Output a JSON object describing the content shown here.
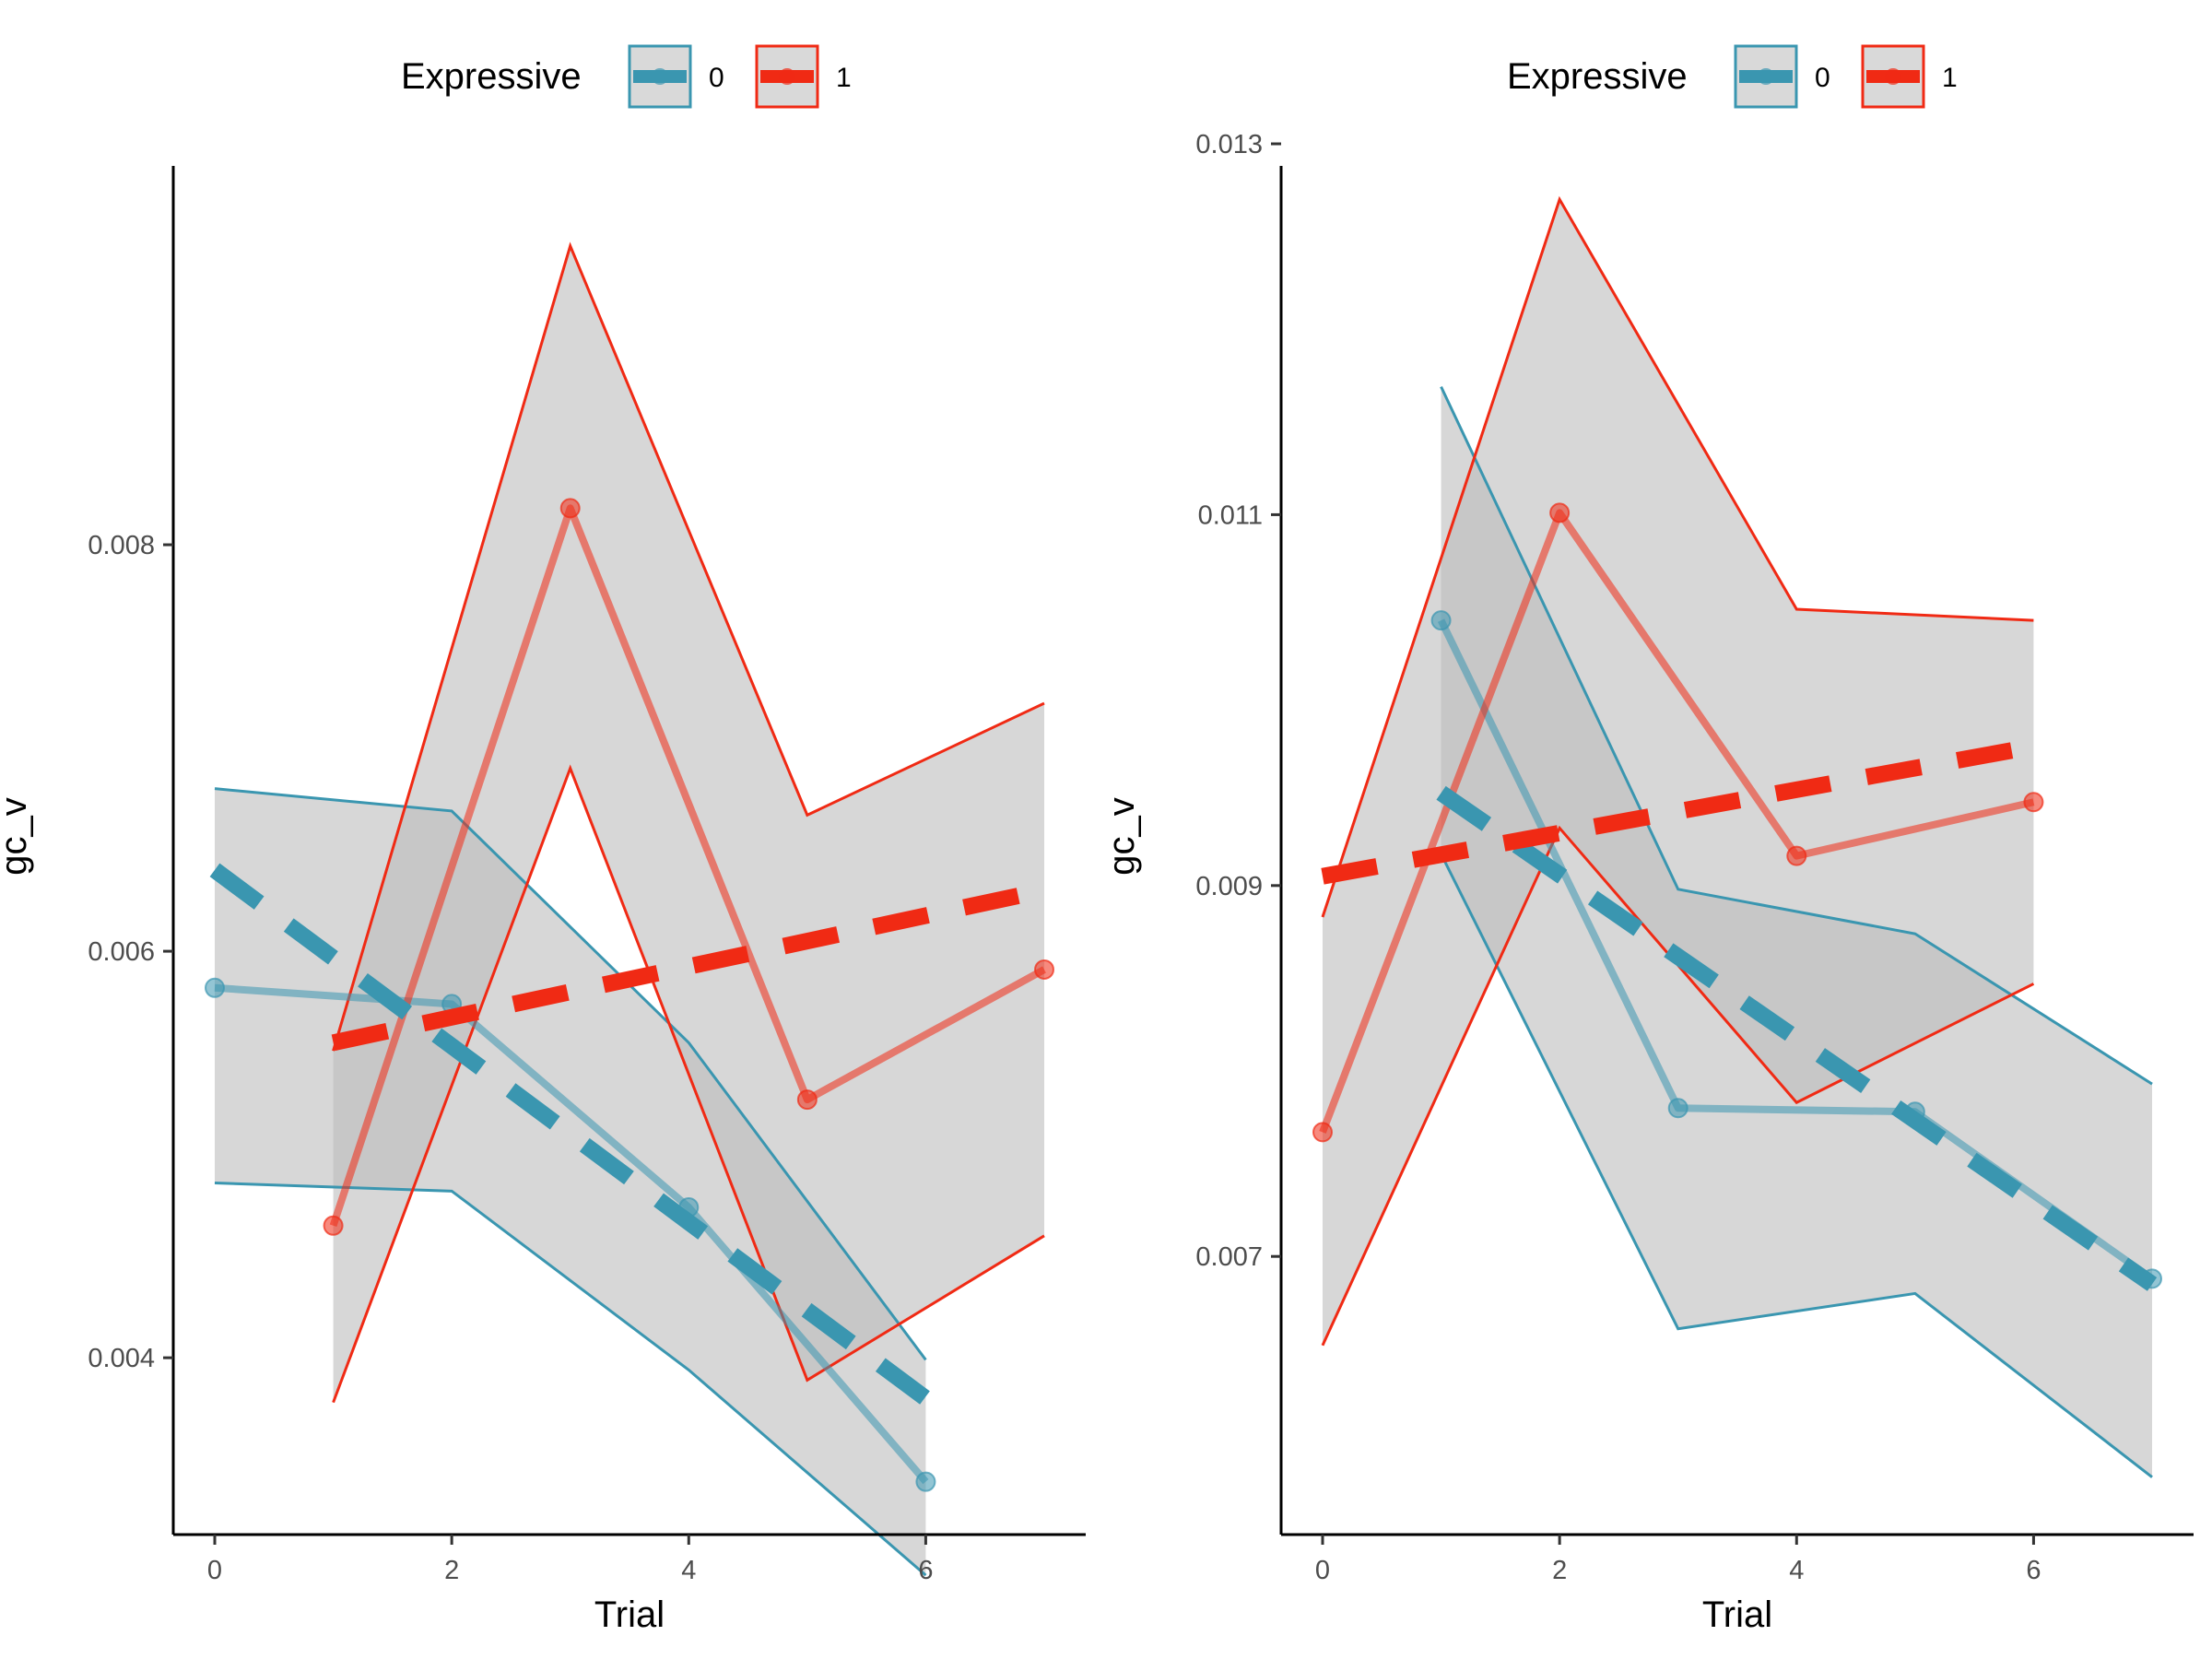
{
  "colors": {
    "series0": "#3a96b0",
    "series1": "#f02a14",
    "ribbon": "#bdbdbd"
  },
  "chart_data": [
    {
      "type": "line",
      "xlabel": "Trial",
      "ylabel": "gc_v",
      "x_ticks": [
        "0",
        "2",
        "4",
        "6"
      ],
      "x_tick_values": [
        0,
        2,
        4,
        6
      ],
      "y_ticks": [
        "0.004",
        "0.006",
        "0.008"
      ],
      "y_tick_values": [
        0.004,
        0.006,
        0.008
      ],
      "xlim": [
        -0.35,
        7.35
      ],
      "ylim": [
        0.00313,
        0.01
      ],
      "grid": false,
      "legend": {
        "title": "Expressive",
        "position": "top",
        "entries": [
          "0",
          "1"
        ]
      },
      "series": [
        {
          "name": "0",
          "color": "#3a96b0",
          "x": [
            0,
            2,
            4,
            6
          ],
          "y": [
            0.00582,
            0.00574,
            0.00474,
            0.00339
          ],
          "ci_upper": [
            0.0068,
            0.00669,
            0.00555,
            0.00399
          ],
          "ci_lower": [
            0.00486,
            0.00482,
            0.00394,
            0.00293
          ],
          "trend": [
            0.0064,
            0.0038
          ]
        },
        {
          "name": "1",
          "color": "#f02a14",
          "x": [
            1,
            3,
            5,
            7
          ],
          "y": [
            0.00465,
            0.00818,
            0.00527,
            0.00591
          ],
          "ci_upper": [
            0.00551,
            0.00947,
            0.00667,
            0.00722
          ],
          "ci_lower": [
            0.00378,
            0.0069,
            0.00389,
            0.0046
          ],
          "trend": [
            0.00555,
            0.0063
          ]
        }
      ]
    },
    {
      "type": "line",
      "xlabel": "Trial",
      "ylabel": "gc_v",
      "x_ticks": [
        "0",
        "2",
        "4",
        "6"
      ],
      "x_tick_values": [
        0,
        2,
        4,
        6
      ],
      "y_ticks": [
        "0.007",
        "0.009",
        "0.011",
        "0.013"
      ],
      "y_tick_values": [
        0.007,
        0.009,
        0.011,
        0.013
      ],
      "xlim": [
        -0.35,
        7.35
      ],
      "ylim": [
        0.0055,
        0.01303
      ],
      "grid": false,
      "legend": {
        "title": "Expressive",
        "position": "top",
        "entries": [
          "0",
          "1"
        ]
      },
      "series": [
        {
          "name": "0",
          "color": "#3a96b0",
          "x": [
            1,
            3,
            5,
            7
          ],
          "y": [
            0.01043,
            0.0078,
            0.00778,
            0.00688
          ],
          "ci_upper": [
            0.01169,
            0.00898,
            0.00874,
            0.00793
          ],
          "ci_lower": [
            0.00917,
            0.00661,
            0.0068,
            0.00581
          ],
          "trend": [
            0.0095,
            0.00685
          ]
        },
        {
          "name": "1",
          "color": "#f02a14",
          "x": [
            0,
            2,
            4,
            6
          ],
          "y": [
            0.00767,
            0.01101,
            0.00916,
            0.00945
          ],
          "ci_upper": [
            0.00883,
            0.0127,
            0.01049,
            0.01043
          ],
          "ci_lower": [
            0.00652,
            0.00931,
            0.00783,
            0.00847
          ],
          "trend": [
            0.00905,
            0.00975
          ]
        }
      ]
    }
  ]
}
